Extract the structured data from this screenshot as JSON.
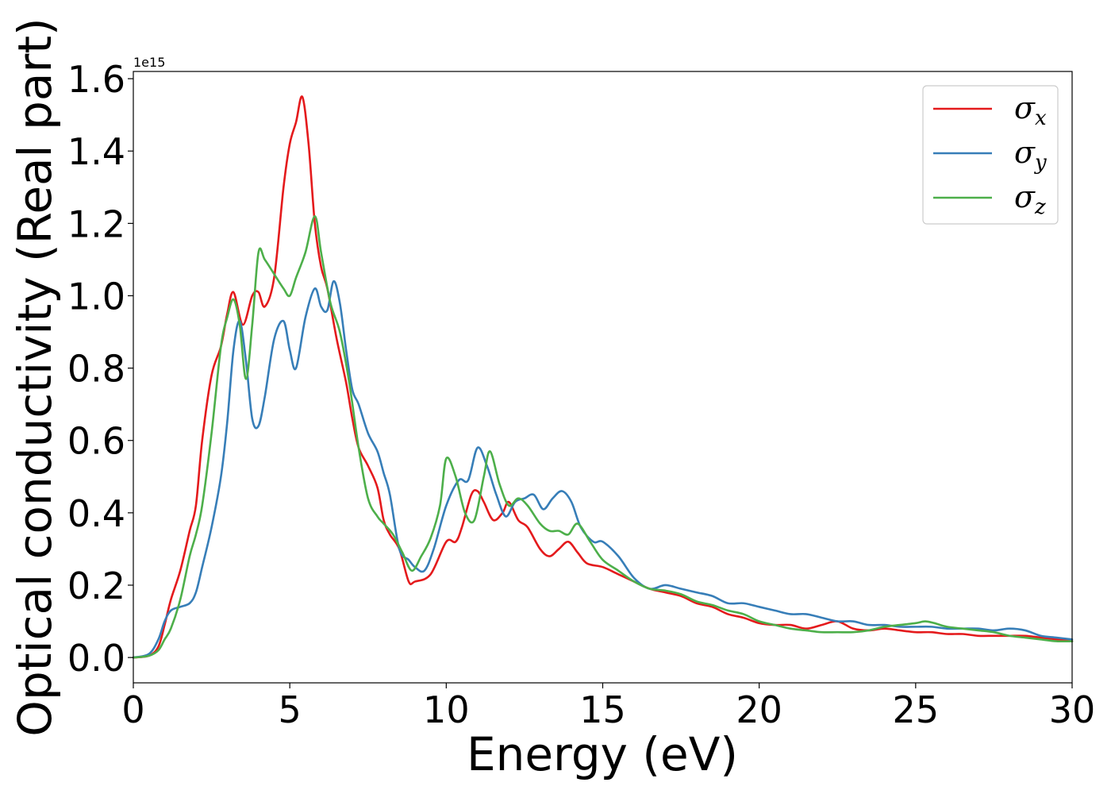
{
  "chart_data": {
    "type": "line",
    "title": "",
    "xlabel": "Energy (eV)",
    "ylabel": "Optical conductivity (Real part)",
    "y_offset_label": "1e15",
    "xlim": [
      0,
      30
    ],
    "ylim": [
      -0.07,
      1.62
    ],
    "xticks": [
      0,
      5,
      10,
      15,
      20,
      25,
      30
    ],
    "xtick_labels": [
      "0",
      "5",
      "10",
      "15",
      "20",
      "25",
      "30"
    ],
    "yticks": [
      0.0,
      0.2,
      0.4,
      0.6,
      0.8,
      1.0,
      1.2,
      1.4,
      1.6
    ],
    "ytick_labels": [
      "0.0",
      "0.2",
      "0.4",
      "0.6",
      "0.8",
      "1.0",
      "1.2",
      "1.4",
      "1.6"
    ],
    "grid": false,
    "legend_position": "top-right",
    "series": [
      {
        "name": "σx",
        "symbol": "σ",
        "subscript": "x",
        "color": "#e41a1c",
        "x": [
          0,
          0.5,
          0.8,
          1.0,
          1.2,
          1.5,
          1.8,
          2.0,
          2.2,
          2.5,
          2.8,
          3.0,
          3.2,
          3.5,
          3.8,
          4.0,
          4.2,
          4.5,
          4.8,
          5.0,
          5.2,
          5.4,
          5.6,
          5.8,
          6.0,
          6.2,
          6.5,
          6.8,
          7.0,
          7.2,
          7.5,
          7.8,
          8.0,
          8.2,
          8.5,
          8.8,
          9.0,
          9.5,
          10.0,
          10.3,
          10.5,
          10.8,
          11.0,
          11.2,
          11.5,
          11.8,
          12.0,
          12.3,
          12.6,
          13.0,
          13.3,
          13.6,
          13.9,
          14.2,
          14.5,
          15.0,
          15.5,
          16.0,
          16.5,
          17.0,
          17.5,
          18.0,
          18.5,
          19.0,
          19.5,
          20.0,
          20.5,
          21.0,
          21.5,
          22.0,
          22.5,
          23.0,
          23.5,
          24.0,
          24.5,
          25.0,
          25.5,
          26.0,
          26.5,
          27.0,
          27.5,
          28.0,
          28.5,
          29.0,
          29.5,
          30.0
        ],
        "y": [
          0.0,
          0.005,
          0.03,
          0.09,
          0.16,
          0.24,
          0.35,
          0.42,
          0.6,
          0.78,
          0.86,
          0.95,
          1.01,
          0.92,
          1.0,
          1.01,
          0.97,
          1.05,
          1.3,
          1.42,
          1.48,
          1.55,
          1.42,
          1.2,
          1.08,
          1.02,
          0.88,
          0.76,
          0.66,
          0.58,
          0.53,
          0.47,
          0.38,
          0.34,
          0.3,
          0.21,
          0.21,
          0.23,
          0.32,
          0.32,
          0.36,
          0.45,
          0.46,
          0.43,
          0.38,
          0.4,
          0.43,
          0.38,
          0.36,
          0.3,
          0.28,
          0.3,
          0.32,
          0.29,
          0.26,
          0.25,
          0.23,
          0.21,
          0.19,
          0.18,
          0.17,
          0.15,
          0.14,
          0.12,
          0.11,
          0.095,
          0.09,
          0.09,
          0.08,
          0.09,
          0.1,
          0.08,
          0.075,
          0.08,
          0.075,
          0.07,
          0.07,
          0.065,
          0.065,
          0.06,
          0.06,
          0.06,
          0.06,
          0.055,
          0.05,
          0.045
        ]
      },
      {
        "name": "σy",
        "symbol": "σ",
        "subscript": "y",
        "color": "#377eb8",
        "x": [
          0,
          0.5,
          0.8,
          1.0,
          1.2,
          1.5,
          1.8,
          2.0,
          2.2,
          2.5,
          2.8,
          3.0,
          3.2,
          3.4,
          3.6,
          3.8,
          4.0,
          4.2,
          4.5,
          4.8,
          5.0,
          5.2,
          5.5,
          5.8,
          6.0,
          6.2,
          6.4,
          6.6,
          6.8,
          7.0,
          7.2,
          7.5,
          7.8,
          8.0,
          8.2,
          8.5,
          8.8,
          9.0,
          9.3,
          9.6,
          10.0,
          10.4,
          10.7,
          11.0,
          11.3,
          11.6,
          11.9,
          12.2,
          12.5,
          12.8,
          13.1,
          13.4,
          13.7,
          14.0,
          14.3,
          14.7,
          15.0,
          15.5,
          16.0,
          16.5,
          17.0,
          17.5,
          18.0,
          18.5,
          19.0,
          19.5,
          20.0,
          20.5,
          21.0,
          21.5,
          22.0,
          22.5,
          23.0,
          23.5,
          24.0,
          24.5,
          25.0,
          25.5,
          26.0,
          26.5,
          27.0,
          27.5,
          28.0,
          28.5,
          29.0,
          29.5,
          30.0
        ],
        "y": [
          0.0,
          0.01,
          0.05,
          0.1,
          0.13,
          0.14,
          0.15,
          0.18,
          0.25,
          0.36,
          0.5,
          0.65,
          0.85,
          0.93,
          0.82,
          0.66,
          0.64,
          0.72,
          0.88,
          0.93,
          0.85,
          0.8,
          0.94,
          1.02,
          0.97,
          0.96,
          1.04,
          0.98,
          0.85,
          0.74,
          0.7,
          0.62,
          0.57,
          0.51,
          0.45,
          0.3,
          0.27,
          0.25,
          0.24,
          0.3,
          0.42,
          0.49,
          0.49,
          0.58,
          0.53,
          0.45,
          0.39,
          0.43,
          0.44,
          0.45,
          0.41,
          0.44,
          0.46,
          0.43,
          0.36,
          0.32,
          0.32,
          0.28,
          0.22,
          0.19,
          0.2,
          0.19,
          0.18,
          0.17,
          0.15,
          0.15,
          0.14,
          0.13,
          0.12,
          0.12,
          0.11,
          0.1,
          0.1,
          0.09,
          0.09,
          0.085,
          0.085,
          0.085,
          0.08,
          0.08,
          0.08,
          0.075,
          0.08,
          0.075,
          0.06,
          0.055,
          0.05
        ]
      },
      {
        "name": "σz",
        "symbol": "σ",
        "subscript": "z",
        "color": "#4daf4a",
        "x": [
          0,
          0.5,
          0.8,
          1.0,
          1.2,
          1.5,
          1.8,
          2.0,
          2.2,
          2.5,
          2.8,
          3.0,
          3.2,
          3.4,
          3.6,
          3.8,
          4.0,
          4.2,
          4.5,
          4.8,
          5.0,
          5.2,
          5.5,
          5.8,
          6.0,
          6.3,
          6.6,
          6.9,
          7.2,
          7.5,
          7.8,
          8.0,
          8.3,
          8.6,
          8.9,
          9.2,
          9.5,
          9.8,
          10.0,
          10.3,
          10.6,
          10.9,
          11.2,
          11.4,
          11.7,
          12.0,
          12.3,
          12.6,
          13.0,
          13.3,
          13.6,
          13.9,
          14.2,
          14.6,
          15.0,
          15.5,
          16.0,
          16.5,
          17.0,
          17.5,
          18.0,
          18.5,
          19.0,
          19.5,
          20.0,
          20.5,
          21.0,
          21.5,
          22.0,
          22.5,
          23.0,
          23.5,
          24.0,
          24.5,
          25.0,
          25.3,
          25.6,
          26.0,
          26.5,
          27.0,
          27.5,
          28.0,
          28.5,
          29.0,
          29.5,
          30.0
        ],
        "y": [
          0.0,
          0.005,
          0.02,
          0.05,
          0.08,
          0.16,
          0.28,
          0.34,
          0.42,
          0.62,
          0.86,
          0.94,
          0.99,
          0.92,
          0.77,
          0.92,
          1.12,
          1.1,
          1.06,
          1.02,
          1.0,
          1.05,
          1.12,
          1.22,
          1.12,
          0.98,
          0.9,
          0.76,
          0.58,
          0.44,
          0.39,
          0.37,
          0.34,
          0.29,
          0.24,
          0.28,
          0.33,
          0.42,
          0.55,
          0.5,
          0.4,
          0.38,
          0.5,
          0.57,
          0.48,
          0.42,
          0.44,
          0.42,
          0.37,
          0.35,
          0.35,
          0.34,
          0.37,
          0.32,
          0.27,
          0.24,
          0.21,
          0.19,
          0.185,
          0.175,
          0.155,
          0.145,
          0.13,
          0.12,
          0.1,
          0.09,
          0.08,
          0.075,
          0.07,
          0.07,
          0.07,
          0.075,
          0.085,
          0.09,
          0.095,
          0.1,
          0.095,
          0.085,
          0.08,
          0.075,
          0.07,
          0.06,
          0.055,
          0.05,
          0.045,
          0.045
        ]
      }
    ]
  }
}
